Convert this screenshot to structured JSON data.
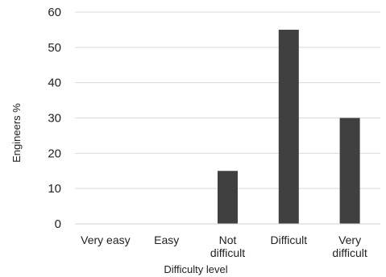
{
  "chart_data": {
    "type": "bar",
    "categories": [
      "Very easy",
      "Easy",
      "Not difficult",
      "Difficult",
      "Very difficult"
    ],
    "category_lines": [
      [
        "Very easy"
      ],
      [
        "Easy"
      ],
      [
        "Not",
        "difficult"
      ],
      [
        "Difficult"
      ],
      [
        "Very",
        "difficult"
      ]
    ],
    "values": [
      0,
      0,
      15,
      55,
      30
    ],
    "xlabel": "Difficulty level",
    "ylabel": "Engineers %",
    "ylim": [
      0,
      60
    ],
    "yticks": [
      0,
      10,
      20,
      30,
      40,
      50,
      60
    ],
    "grid": true,
    "bar_color": "#404040",
    "grid_color": "#d9d9d9"
  }
}
